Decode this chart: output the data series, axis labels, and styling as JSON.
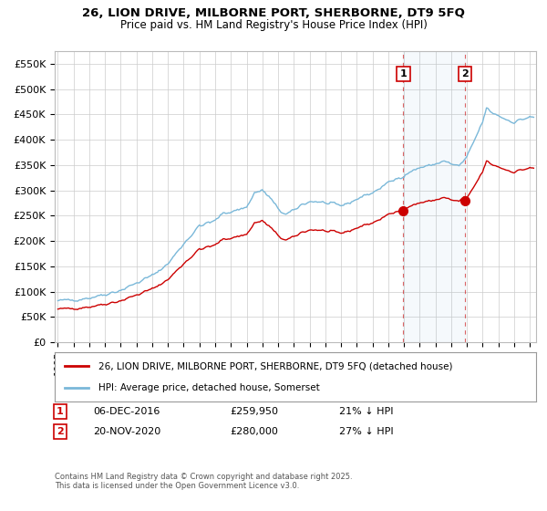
{
  "title": "26, LION DRIVE, MILBORNE PORT, SHERBORNE, DT9 5FQ",
  "subtitle": "Price paid vs. HM Land Registry's House Price Index (HPI)",
  "ylabel_ticks": [
    "£0",
    "£50K",
    "£100K",
    "£150K",
    "£200K",
    "£250K",
    "£300K",
    "£350K",
    "£400K",
    "£450K",
    "£500K",
    "£550K"
  ],
  "ytick_vals": [
    0,
    50000,
    100000,
    150000,
    200000,
    250000,
    300000,
    350000,
    400000,
    450000,
    500000,
    550000
  ],
  "ylim": [
    0,
    575000
  ],
  "purchase1_year": 2016,
  "purchase1_month": 12,
  "purchase1_price": 259950,
  "purchase2_year": 2020,
  "purchase2_month": 11,
  "purchase2_price": 280000,
  "legend_line1": "26, LION DRIVE, MILBORNE PORT, SHERBORNE, DT9 5FQ (detached house)",
  "legend_line2": "HPI: Average price, detached house, Somerset",
  "table_row1_num": "1",
  "table_row1_date": "06-DEC-2016",
  "table_row1_price": "£259,950",
  "table_row1_hpi": "21% ↓ HPI",
  "table_row2_num": "2",
  "table_row2_date": "20-NOV-2020",
  "table_row2_price": "£280,000",
  "table_row2_hpi": "27% ↓ HPI",
  "footnote": "Contains HM Land Registry data © Crown copyright and database right 2025.\nThis data is licensed under the Open Government Licence v3.0.",
  "hpi_color": "#7ab8d9",
  "price_color": "#cc0000",
  "vline_color": "#cc0000",
  "background_color": "#ffffff",
  "grid_color": "#cccccc"
}
